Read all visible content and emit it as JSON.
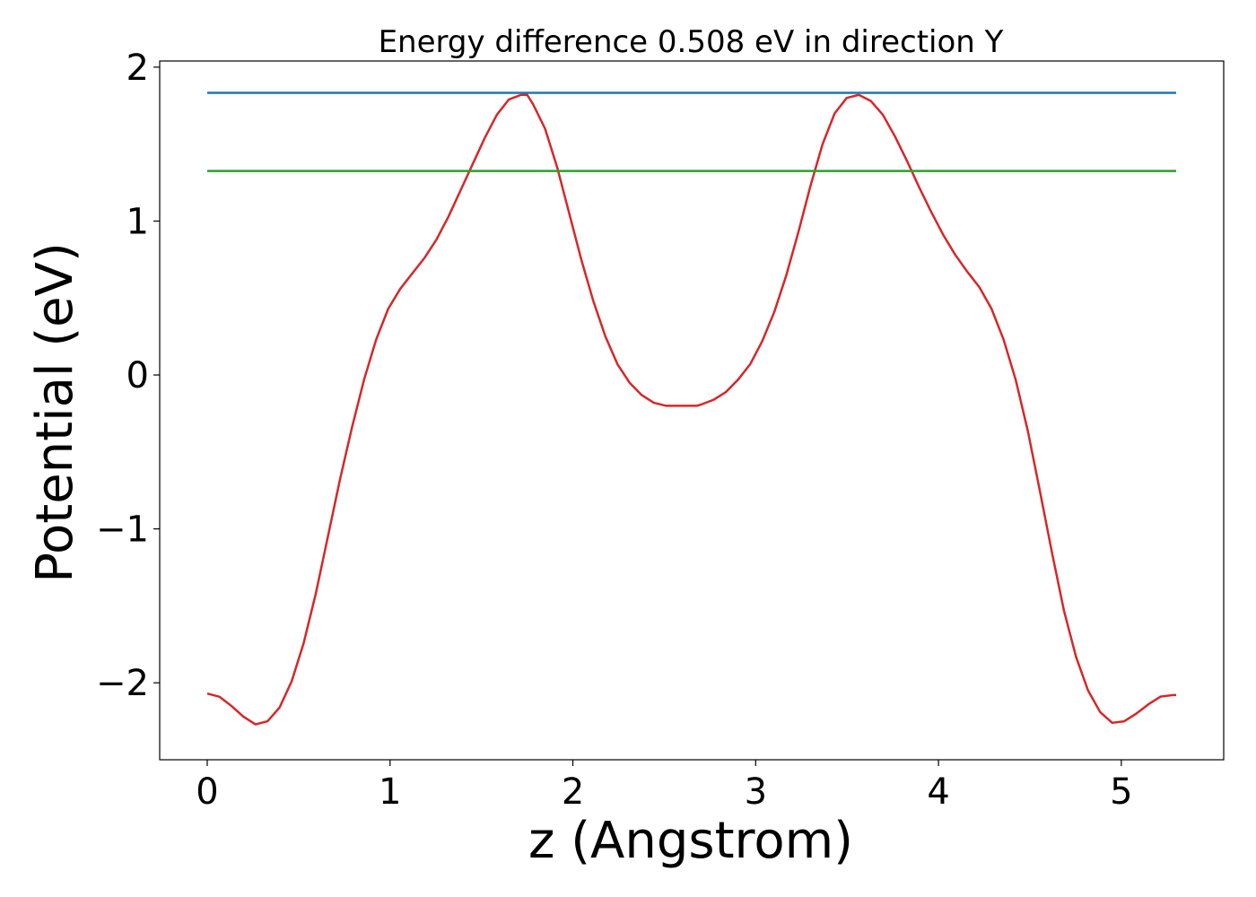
{
  "chart_data": {
    "type": "line",
    "title": "Energy difference 0.508 eV in direction Y",
    "xlabel": "z (Angstrom)",
    "ylabel": "Potential (eV)",
    "xlim": [
      -0.26,
      5.56
    ],
    "ylim": [
      -2.5,
      2.04
    ],
    "xticks": [
      0,
      1,
      2,
      3,
      4,
      5
    ],
    "xtick_labels": [
      "0",
      "1",
      "2",
      "3",
      "4",
      "5"
    ],
    "yticks": [
      -2,
      -1,
      0,
      1,
      2
    ],
    "ytick_labels": [
      "−2",
      "−1",
      "0",
      "1",
      "2"
    ],
    "grid": false,
    "series": [
      {
        "color": "#d62728",
        "x": [
          0.0,
          0.066,
          0.132,
          0.198,
          0.264,
          0.33,
          0.396,
          0.462,
          0.528,
          0.594,
          0.66,
          0.726,
          0.792,
          0.858,
          0.924,
          0.99,
          1.056,
          1.122,
          1.188,
          1.254,
          1.32,
          1.386,
          1.452,
          1.518,
          1.584,
          1.65,
          1.716,
          1.75,
          1.782,
          1.848,
          1.914,
          1.98,
          2.046,
          2.112,
          2.178,
          2.244,
          2.31,
          2.376,
          2.442,
          2.508,
          2.574,
          2.64,
          2.68,
          2.706,
          2.772,
          2.838,
          2.904,
          2.97,
          3.036,
          3.102,
          3.168,
          3.234,
          3.3,
          3.366,
          3.432,
          3.498,
          3.564,
          3.63,
          3.696,
          3.762,
          3.828,
          3.894,
          3.96,
          4.026,
          4.092,
          4.158,
          4.224,
          4.29,
          4.356,
          4.422,
          4.488,
          4.554,
          4.62,
          4.686,
          4.752,
          4.818,
          4.884,
          4.95,
          5.016,
          5.082,
          5.148,
          5.214,
          5.28,
          5.3
        ],
        "y": [
          -2.07,
          -2.09,
          -2.15,
          -2.22,
          -2.27,
          -2.25,
          -2.16,
          -1.99,
          -1.74,
          -1.42,
          -1.05,
          -0.68,
          -0.34,
          -0.03,
          0.23,
          0.43,
          0.56,
          0.66,
          0.76,
          0.88,
          1.03,
          1.2,
          1.37,
          1.54,
          1.69,
          1.79,
          1.82,
          1.82,
          1.76,
          1.6,
          1.35,
          1.05,
          0.75,
          0.48,
          0.25,
          0.07,
          -0.05,
          -0.13,
          -0.18,
          -0.2,
          -0.2,
          -0.2,
          -0.2,
          -0.19,
          -0.16,
          -0.11,
          -0.03,
          0.07,
          0.22,
          0.41,
          0.65,
          0.93,
          1.23,
          1.5,
          1.7,
          1.8,
          1.82,
          1.78,
          1.69,
          1.55,
          1.39,
          1.22,
          1.06,
          0.91,
          0.78,
          0.67,
          0.57,
          0.43,
          0.23,
          -0.03,
          -0.36,
          -0.75,
          -1.15,
          -1.53,
          -1.83,
          -2.05,
          -2.19,
          -2.26,
          -2.25,
          -2.2,
          -2.14,
          -2.09,
          -2.08,
          -2.08
        ]
      },
      {
        "color": "#1f77b4",
        "x": [
          0.0,
          5.3
        ],
        "y": [
          1.833,
          1.833
        ]
      },
      {
        "color": "#2ca02c",
        "x": [
          0.0,
          5.3
        ],
        "y": [
          1.325,
          1.325
        ]
      }
    ]
  }
}
